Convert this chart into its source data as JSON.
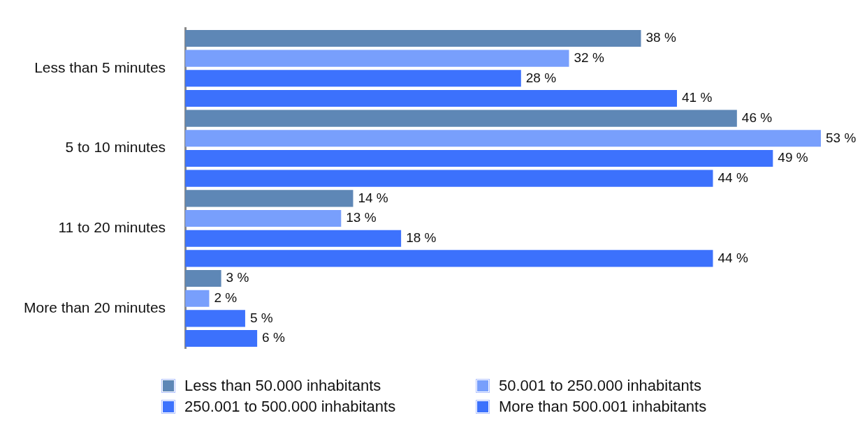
{
  "chart_data": {
    "type": "bar",
    "orientation": "horizontal",
    "legend": "bottom",
    "categories": [
      "Less than 5 minutes",
      "5 to 10 minutes",
      "11 to 20 minutes",
      "More than 20 minutes"
    ],
    "series": [
      {
        "name": "Less than 50.000 inhabitants",
        "color": "#5e87b6",
        "values": [
          38,
          46,
          14,
          3
        ],
        "value_labels": [
          "38 %",
          "46 %",
          "14 %",
          "3 %"
        ]
      },
      {
        "name": "50.001 to 250.000 inhabitants",
        "color": "#789ffc",
        "values": [
          32,
          53,
          13,
          2
        ],
        "value_labels": [
          "32 %",
          "53 %",
          "13 %",
          "2 %"
        ]
      },
      {
        "name": "250.001 to 500.000 inhabitants",
        "color": "#3d72fd",
        "values": [
          28,
          49,
          18,
          5
        ],
        "value_labels": [
          "28 %",
          "49 %",
          "18 %",
          "5 %"
        ]
      },
      {
        "name": "More than 500.001 inhabitants",
        "color": "#3c71fc",
        "values": [
          41,
          44,
          44,
          6
        ],
        "value_labels": [
          "41 %",
          "44 %",
          "44 %",
          "6 %"
        ]
      }
    ]
  }
}
